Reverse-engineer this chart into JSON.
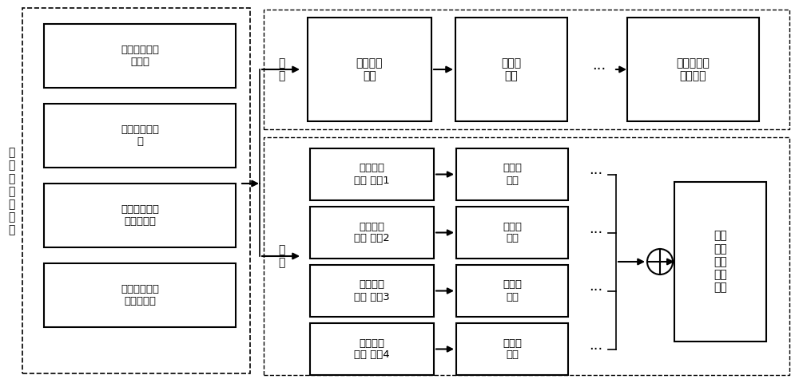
{
  "fig_width": 10.0,
  "fig_height": 4.8,
  "dpi": 100,
  "bg_color": "#ffffff",
  "left_label": "多\n通\n道\n振\n动\n信\n号",
  "left_boxes": [
    "齿轮箱输入端\n前轴承",
    "齿轮箱齿圈垂\n直",
    "齿轮箱低速轴\n后轴承垂直",
    "齿轮箱高速轴\n后轴承垂直"
  ],
  "global_label": "全\n局",
  "local_label": "局\n部",
  "top_boxes": [
    "通道间卷\n积层",
    "最大值\n池化"
  ],
  "top_end_box": "通道间空间\n故障特征",
  "bottom_rows": [
    [
      "通道内卷\n积层 尺度1",
      "最大值\n池化"
    ],
    [
      "通道内卷\n积层 尺度2",
      "最大值\n池化"
    ],
    [
      "通道内卷\n积层 尺度3",
      "最大值\n池化"
    ],
    [
      "通道内卷\n积层 尺度4",
      "最大值\n池化"
    ]
  ],
  "bottom_end_box": "通道\n内部\n时序\n故障\n特征"
}
